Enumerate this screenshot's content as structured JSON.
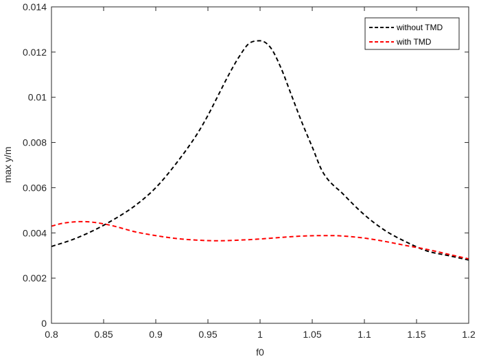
{
  "chart_data": {
    "type": "line",
    "title": "",
    "xlabel": "f0",
    "ylabel": "max y/m",
    "xlim": [
      0.8,
      1.2
    ],
    "ylim": [
      0,
      0.014
    ],
    "xticks": [
      0.8,
      0.85,
      0.9,
      0.95,
      1,
      1.05,
      1.1,
      1.15,
      1.2
    ],
    "xtick_labels": [
      "0.8",
      "0.85",
      "0.9",
      "0.95",
      "1",
      "1.05",
      "1.1",
      "1.15",
      "1.2"
    ],
    "yticks": [
      0,
      0.002,
      0.004,
      0.006,
      0.008,
      0.01,
      0.012,
      0.014
    ],
    "ytick_labels": [
      "0",
      "0.002",
      "0.004",
      "0.006",
      "0.008",
      "0.01",
      "0.012",
      "0.014"
    ],
    "grid": false,
    "box": true,
    "legend_position": "top-right",
    "series": [
      {
        "name": "without TMD",
        "color": "#000000",
        "line_style": "dashed",
        "x": [
          0.8,
          0.82,
          0.84,
          0.86,
          0.88,
          0.9,
          0.92,
          0.94,
          0.95,
          0.96,
          0.97,
          0.98,
          0.99,
          1.0,
          1.01,
          1.02,
          1.03,
          1.04,
          1.05,
          1.06,
          1.08,
          1.1,
          1.12,
          1.14,
          1.16,
          1.18,
          1.2
        ],
        "y": [
          0.0034,
          0.0037,
          0.0041,
          0.0046,
          0.0052,
          0.006,
          0.0071,
          0.0084,
          0.0092,
          0.0101,
          0.011,
          0.0118,
          0.0124,
          0.0125,
          0.0122,
          0.0113,
          0.0101,
          0.0089,
          0.0078,
          0.0067,
          0.0057,
          0.0048,
          0.0041,
          0.0036,
          0.0032,
          0.003,
          0.0028
        ]
      },
      {
        "name": "with TMD",
        "color": "#ff0000",
        "line_style": "dashed",
        "x": [
          0.8,
          0.81,
          0.82,
          0.83,
          0.84,
          0.85,
          0.86,
          0.88,
          0.9,
          0.92,
          0.94,
          0.96,
          0.98,
          1.0,
          1.02,
          1.04,
          1.06,
          1.07,
          1.08,
          1.1,
          1.12,
          1.14,
          1.16,
          1.18,
          1.2
        ],
        "y": [
          0.0043,
          0.00442,
          0.00448,
          0.0045,
          0.00447,
          0.0044,
          0.0043,
          0.00405,
          0.00388,
          0.00375,
          0.00368,
          0.00365,
          0.00368,
          0.00373,
          0.0038,
          0.00386,
          0.00388,
          0.00388,
          0.00386,
          0.00377,
          0.00362,
          0.00344,
          0.00327,
          0.00306,
          0.00285
        ]
      }
    ]
  }
}
